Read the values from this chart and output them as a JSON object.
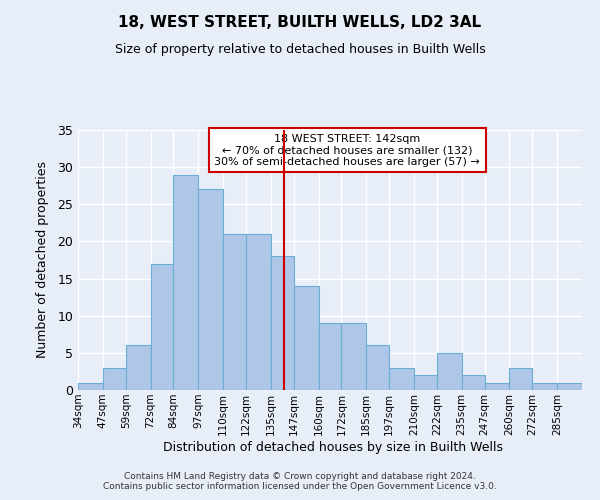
{
  "title": "18, WEST STREET, BUILTH WELLS, LD2 3AL",
  "subtitle": "Size of property relative to detached houses in Builth Wells",
  "xlabel": "Distribution of detached houses by size in Builth Wells",
  "ylabel": "Number of detached properties",
  "footnote1": "Contains HM Land Registry data © Crown copyright and database right 2024.",
  "footnote2": "Contains public sector information licensed under the Open Government Licence v3.0.",
  "bin_labels": [
    "34sqm",
    "47sqm",
    "59sqm",
    "72sqm",
    "84sqm",
    "97sqm",
    "110sqm",
    "122sqm",
    "135sqm",
    "147sqm",
    "160sqm",
    "172sqm",
    "185sqm",
    "197sqm",
    "210sqm",
    "222sqm",
    "235sqm",
    "247sqm",
    "260sqm",
    "272sqm",
    "285sqm"
  ],
  "bar_values": [
    1,
    3,
    6,
    17,
    29,
    27,
    21,
    21,
    18,
    14,
    9,
    9,
    6,
    3,
    2,
    5,
    2,
    1,
    3,
    1,
    1
  ],
  "bar_color": "#aec6e8",
  "bar_edge_color": "#6aadd5",
  "background_color": "#e8eef8",
  "grid_color": "#ffffff",
  "vline_x": 142,
  "vline_color": "#cc0000",
  "annotation_text": "18 WEST STREET: 142sqm\n← 70% of detached houses are smaller (132)\n30% of semi-detached houses are larger (57) →",
  "annotation_box_color": "#ffffff",
  "annotation_box_edge": "#cc0000",
  "ylim": [
    0,
    35
  ],
  "yticks": [
    0,
    5,
    10,
    15,
    20,
    25,
    30,
    35
  ],
  "bin_edges_sqm": [
    34,
    47,
    59,
    72,
    84,
    97,
    110,
    122,
    135,
    147,
    160,
    172,
    185,
    197,
    210,
    222,
    235,
    247,
    260,
    272,
    285,
    298
  ]
}
